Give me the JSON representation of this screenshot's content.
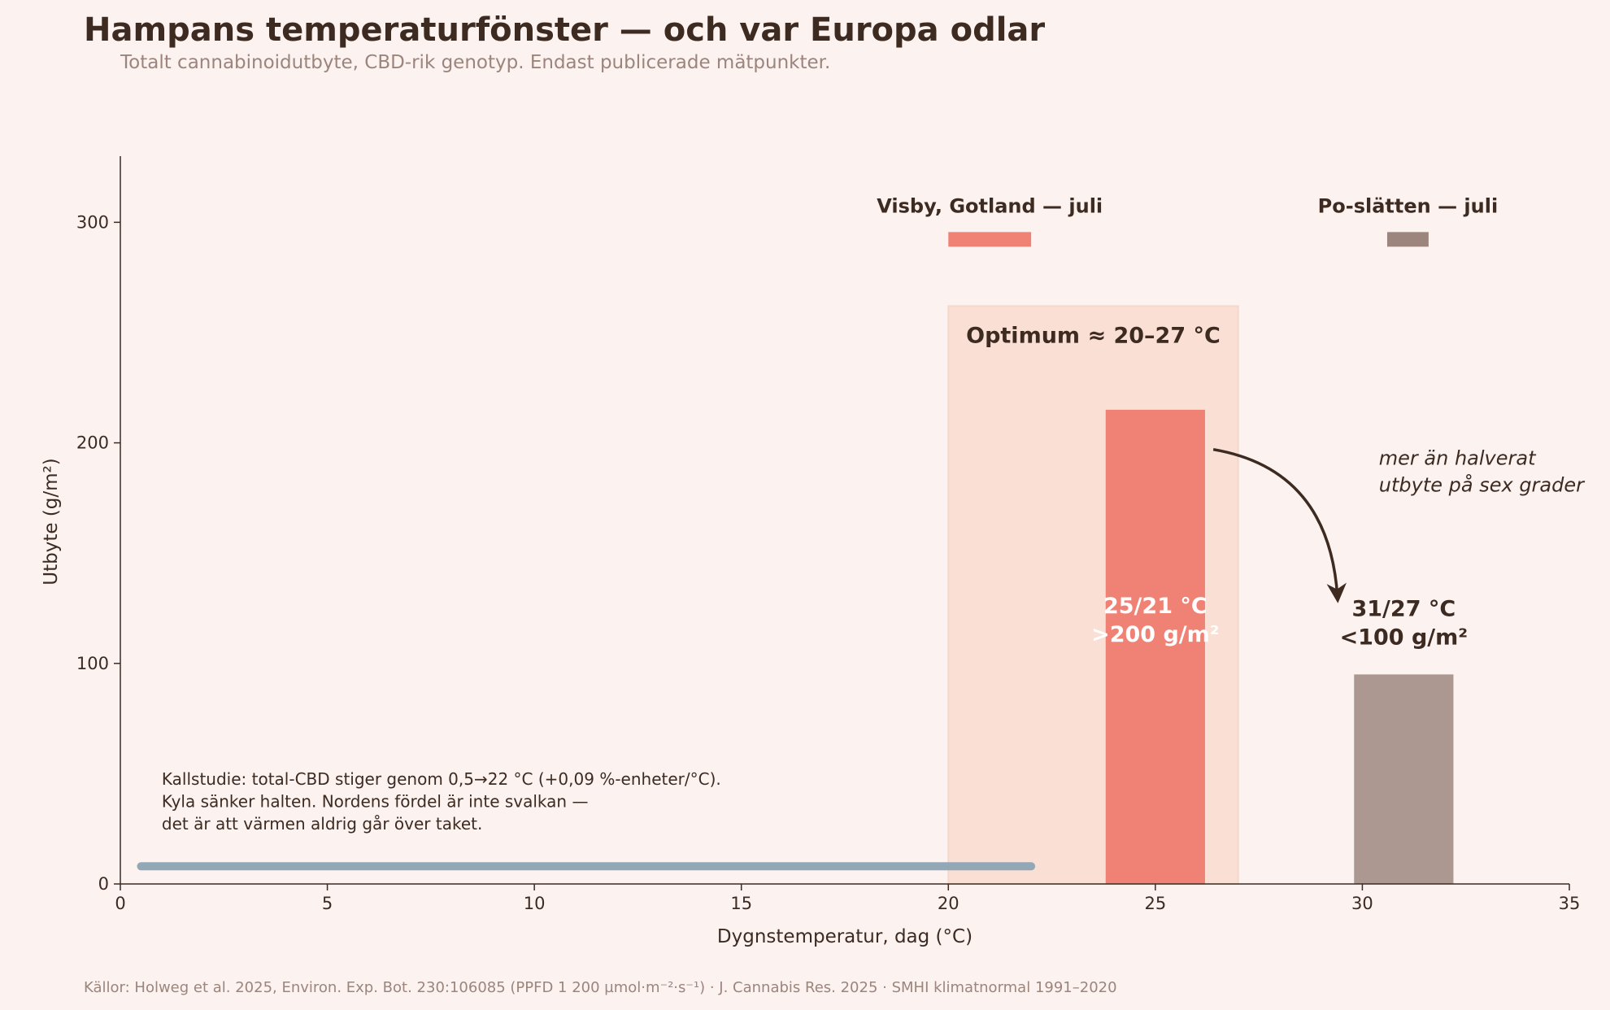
{
  "title": "Hampans temperaturfönster — och var Europa odlar",
  "subtitle": "Totalt cannabinoidutbyte, CBD-rik genotyp. Endast publicerade mätpunkter.",
  "source": "Källor: Holweg et al. 2025, Environ. Exp. Bot. 230:106085 (PPFD 1 200 µmol·m⁻²·s⁻¹) · J. Cannabis Res. 2025 · SMHI klimatnormal 1991–2020",
  "chart_data": {
    "type": "bar",
    "xlabel": "Dygnstemperatur, dag (°C)",
    "ylabel": "Utbyte (g/m²)",
    "xlim": [
      0,
      35
    ],
    "ylim": [
      0,
      330
    ],
    "xticks": [
      0,
      5,
      10,
      15,
      20,
      25,
      30,
      35
    ],
    "yticks": [
      0,
      100,
      200,
      300
    ],
    "grid": false,
    "bars": [
      {
        "x": 25,
        "value": 215,
        "color": "#ef8274",
        "label_lines": [
          "25/21 °C",
          ">200 g/m²"
        ],
        "label_color": "#ffffff"
      },
      {
        "x": 31,
        "value": 95,
        "color": "#ac9891",
        "label_lines": [
          "31/27 °C",
          "<100 g/m²"
        ],
        "label_color": "#3d2b22"
      }
    ],
    "optimum_band": {
      "x_start": 20,
      "x_end": 27,
      "y_top": 262,
      "label": "Optimum ≈ 20–27 °C",
      "color": "#fadfd5"
    },
    "range_line": {
      "x_start": 0.5,
      "x_end": 22,
      "y": 8,
      "color": "#93a8b6"
    },
    "climate_markers": [
      {
        "label": "Visby, Gotland — juli",
        "x_start": 20,
        "x_end": 22,
        "color": "#ef8274"
      },
      {
        "label": "Po-slätten — juli",
        "x_start": 30.6,
        "x_end": 31.6,
        "color": "#9c857c"
      }
    ],
    "annotations": {
      "drop_note": [
        "mer än halverat",
        "utbyte på sex grader"
      ],
      "cold_study_note": [
        "Kallstudie: total-CBD stiger genom 0,5→22 °C (+0,09 %-enheter/°C).",
        "Kyla sänker halten. Nordens fördel är inte svalkan —",
        "det är att värmen aldrig går över taket."
      ]
    }
  }
}
